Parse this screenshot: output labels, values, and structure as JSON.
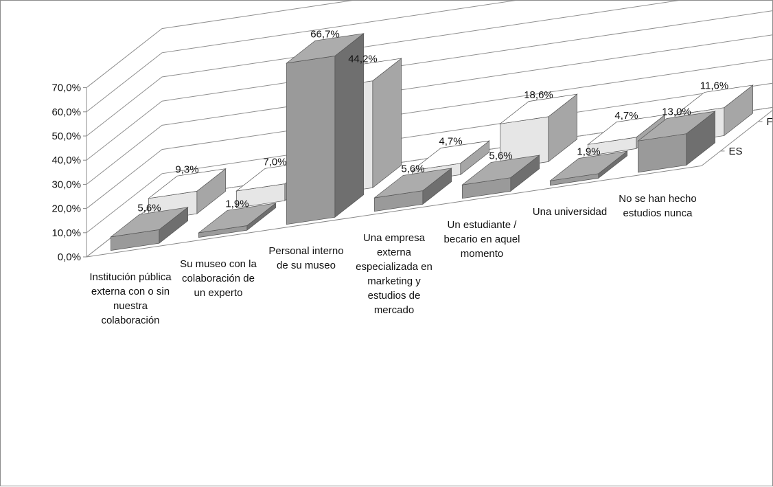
{
  "chart_data": {
    "type": "bar",
    "subtype": "3d-clustered-depth",
    "categories": [
      "Institución pública externa con o sin nuestra colaboración",
      "Su museo con la colaboración de un experto",
      "Personal interno de su museo",
      "Una empresa externa especializada en marketing y estudios de mercado",
      "Un estudiante / becario en aquel momento",
      "Una universidad",
      "No se han hecho estudios nunca"
    ],
    "series": [
      {
        "name": "ES",
        "values": [
          5.6,
          1.9,
          66.7,
          5.6,
          5.6,
          1.9,
          13.0
        ],
        "labels": [
          "5,6%",
          "1,9%",
          "66,7%",
          "5,6%",
          "5,6%",
          "1,9%",
          "13,0%"
        ]
      },
      {
        "name": "FR",
        "values": [
          9.3,
          7.0,
          44.2,
          4.7,
          18.6,
          4.7,
          11.6
        ],
        "labels": [
          "9,3%",
          "7,0%",
          "44,2%",
          "4,7%",
          "18,6%",
          "4,7%",
          "11,6%"
        ]
      }
    ],
    "y_ticks": [
      "0,0%",
      "10,0%",
      "20,0%",
      "30,0%",
      "40,0%",
      "50,0%",
      "60,0%",
      "70,0%"
    ],
    "ylim": [
      0,
      70
    ],
    "grid": true,
    "legend": "depth-axis-right",
    "colors": {
      "ES": "#9a9a9a",
      "FR": "#e6e6e6"
    }
  }
}
